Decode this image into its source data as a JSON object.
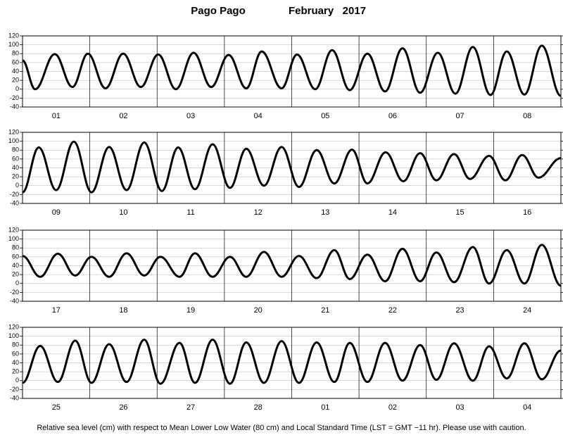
{
  "header": {
    "location": "Pago Pago",
    "month": "February   2017",
    "note": "Relative sea level (cm) with respect to Mean Lower Low Water (80 cm) and Local Standard Time (LST = GMT −11 hr). Please use with caution."
  },
  "chart_data": [
    {
      "type": "line",
      "categories": [
        "01",
        "02",
        "03",
        "04",
        "05",
        "06",
        "07",
        "08"
      ],
      "x": [
        0,
        4.5,
        11.5,
        17.8,
        23.3,
        29.6,
        35.9,
        42.2,
        48.4,
        54.7,
        61.0,
        67.3,
        73.5,
        79.8,
        85.3,
        92.4,
        97.9,
        104.4,
        110.4,
        116.7,
        123.0,
        129.3,
        135.5,
        141.8,
        148.1,
        154.4,
        160.6,
        166.9,
        172.7,
        179.0,
        185.2,
        192
      ],
      "series": [
        {
          "color": "#000000",
          "values": [
            65,
            0,
            79,
            5,
            80,
            2,
            80,
            5,
            78,
            0,
            82,
            5,
            77,
            2,
            85,
            2,
            78,
            0,
            88,
            -2,
            80,
            -5,
            92,
            -8,
            82,
            -10,
            95,
            -13,
            85,
            -12,
            98,
            -15
          ]
        }
      ],
      "xlim": [
        0,
        192
      ],
      "ylim": [
        -40,
        120
      ],
      "yticks": [
        -40,
        -20,
        0,
        20,
        40,
        60,
        80,
        100,
        120
      ],
      "grid": true
    },
    {
      "type": "line",
      "categories": [
        "09",
        "10",
        "11",
        "12",
        "13",
        "14",
        "15",
        "16"
      ],
      "x": [
        0,
        5.8,
        12.0,
        18.3,
        24.6,
        30.9,
        37.1,
        43.4,
        49.7,
        55.5,
        61.5,
        67.8,
        74.0,
        79.8,
        86.1,
        92.4,
        98.6,
        104.9,
        111.2,
        117.5,
        123.0,
        129.5,
        135.8,
        141.8,
        147.6,
        153.9,
        159.6,
        166.4,
        172.2,
        178.2,
        184.0,
        192
      ],
      "series": [
        {
          "color": "#000000",
          "values": [
            -15,
            86,
            -10,
            99,
            -15,
            87,
            -10,
            97,
            -12,
            86,
            -8,
            93,
            -5,
            83,
            0,
            87,
            -3,
            80,
            5,
            81,
            5,
            75,
            10,
            73,
            12,
            71,
            15,
            67,
            12,
            69,
            18,
            62
          ]
        }
      ],
      "xlim": [
        0,
        192
      ],
      "ylim": [
        -40,
        120
      ],
      "yticks": [
        -40,
        -20,
        0,
        20,
        40,
        60,
        80,
        100,
        120
      ],
      "grid": true
    },
    {
      "type": "line",
      "categories": [
        "17",
        "18",
        "19",
        "20",
        "21",
        "22",
        "23",
        "24"
      ],
      "x": [
        0,
        6.3,
        12.6,
        18.8,
        24.6,
        30.9,
        37.1,
        43.4,
        49.2,
        56.0,
        61.5,
        67.8,
        74.0,
        79.8,
        86.1,
        92.4,
        98.6,
        104.9,
        111.2,
        116.7,
        123.0,
        129.3,
        135.5,
        141.8,
        147.6,
        153.9,
        160.6,
        166.4,
        172.7,
        179.0,
        185.2,
        192
      ],
      "series": [
        {
          "color": "#000000",
          "values": [
            62,
            15,
            67,
            18,
            60,
            15,
            68,
            18,
            60,
            15,
            68,
            15,
            60,
            15,
            71,
            15,
            62,
            12,
            75,
            10,
            65,
            5,
            78,
            5,
            70,
            3,
            82,
            0,
            75,
            0,
            87,
            -5
          ]
        }
      ],
      "xlim": [
        0,
        192
      ],
      "ylim": [
        -40,
        120
      ],
      "yticks": [
        -40,
        -20,
        0,
        20,
        40,
        60,
        80,
        100,
        120
      ],
      "grid": true
    },
    {
      "type": "line",
      "categories": [
        "25",
        "26",
        "27",
        "28",
        "01",
        "02",
        "03",
        "04"
      ],
      "x": [
        0,
        6.3,
        12.6,
        18.8,
        24.6,
        30.9,
        37.1,
        43.4,
        49.2,
        56.0,
        61.5,
        67.8,
        74.0,
        79.8,
        86.1,
        92.4,
        98.6,
        104.9,
        111.2,
        116.7,
        123.0,
        129.3,
        135.5,
        141.8,
        147.6,
        153.9,
        160.6,
        166.4,
        172.7,
        179.0,
        185.2,
        192
      ],
      "series": [
        {
          "color": "#000000",
          "values": [
            -5,
            78,
            -3,
            90,
            -5,
            82,
            -3,
            92,
            -7,
            85,
            -5,
            92,
            -7,
            86,
            -5,
            89,
            -5,
            86,
            -3,
            85,
            -3,
            85,
            0,
            80,
            2,
            84,
            0,
            77,
            5,
            84,
            3,
            68
          ]
        }
      ],
      "xlim": [
        0,
        192
      ],
      "ylim": [
        -40,
        120
      ],
      "yticks": [
        -40,
        -20,
        0,
        20,
        40,
        60,
        80,
        100,
        120
      ],
      "grid": true
    }
  ]
}
